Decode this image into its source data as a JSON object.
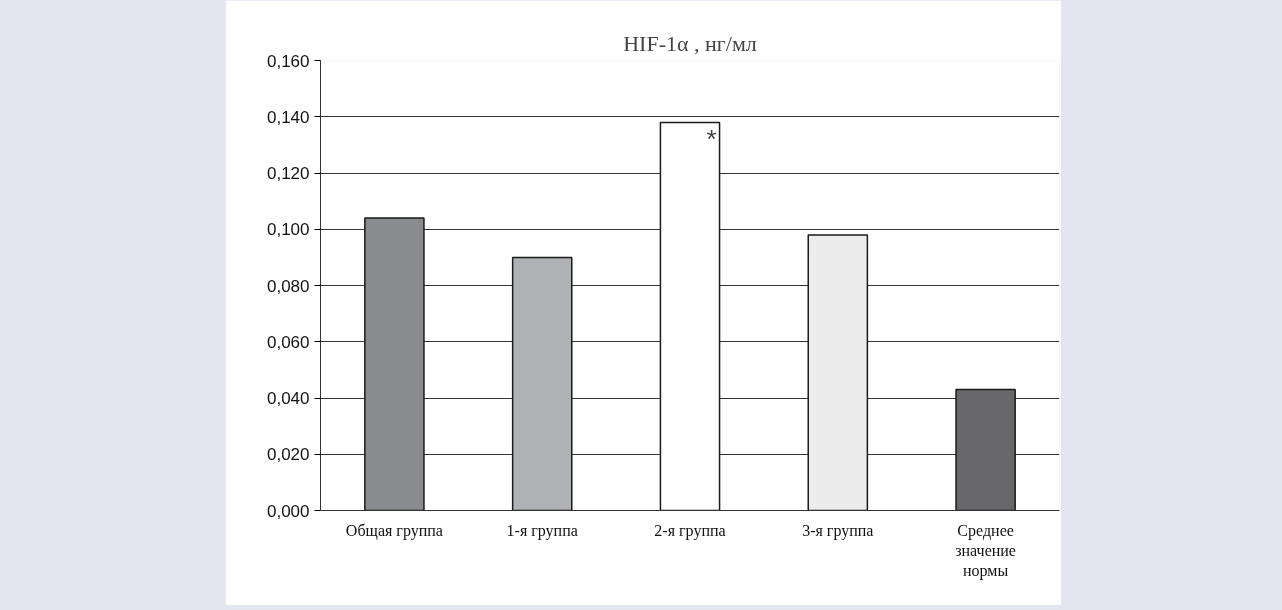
{
  "chart_data": {
    "type": "bar",
    "title": "HIF-1α , нг/мл",
    "categories": [
      "Общая группа",
      "1-я группа",
      "2-я группа",
      "3-я группа",
      "Среднее значение нормы"
    ],
    "values": [
      0.104,
      0.09,
      0.138,
      0.098,
      0.043
    ],
    "colors": [
      "#8a8b8f",
      "#b0b1b5",
      "#ffffff",
      "#ececec",
      "#68686a"
    ],
    "ylim": [
      0,
      0.16
    ],
    "yticks": [
      {
        "value": 0,
        "label": "0,000"
      },
      {
        "value": 0.02,
        "label": "0,020"
      },
      {
        "value": 0.04,
        "label": "0,040"
      },
      {
        "value": 0.06,
        "label": "0,060"
      },
      {
        "value": 0.08,
        "label": "0,080"
      },
      {
        "value": 0.1,
        "label": "0,100"
      },
      {
        "value": 0.12,
        "label": "0,120"
      },
      {
        "value": 0.14,
        "label": "0,140"
      },
      {
        "value": 0.16,
        "label": "0,160"
      }
    ],
    "grid": "y",
    "annotations": [
      {
        "text": "*",
        "x": "2-я группа",
        "y": 0.138
      }
    ]
  }
}
